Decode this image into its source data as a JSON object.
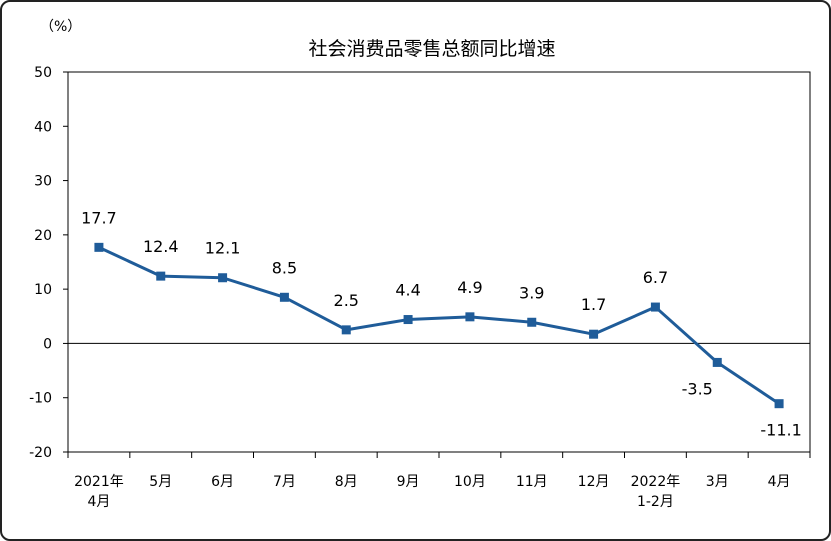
{
  "chart_data": {
    "type": "line",
    "title": "社会消费品零售总额同比增速",
    "ylabel": "（%）",
    "xlabel": "",
    "ylim": [
      -20,
      50
    ],
    "yticks": [
      50,
      40,
      30,
      20,
      10,
      0,
      -10,
      -20
    ],
    "grid": false,
    "legend": "none",
    "categories": [
      [
        "2021年",
        "4月"
      ],
      [
        "5月"
      ],
      [
        "6月"
      ],
      [
        "7月"
      ],
      [
        "8月"
      ],
      [
        "9月"
      ],
      [
        "10月"
      ],
      [
        "11月"
      ],
      [
        "12月"
      ],
      [
        "2022年",
        "1-2月"
      ],
      [
        "3月"
      ],
      [
        "4月"
      ]
    ],
    "series": [
      {
        "values": [
          17.7,
          12.4,
          12.1,
          8.5,
          2.5,
          4.4,
          4.9,
          3.9,
          1.7,
          6.7,
          -3.5,
          -11.1
        ],
        "labels": [
          "17.7",
          "12.4",
          "12.1",
          "8.5",
          "2.5",
          "4.4",
          "4.9",
          "3.9",
          "1.7",
          "6.7",
          "-3.5",
          "-11.1"
        ],
        "color": "#1F5C99"
      }
    ]
  }
}
